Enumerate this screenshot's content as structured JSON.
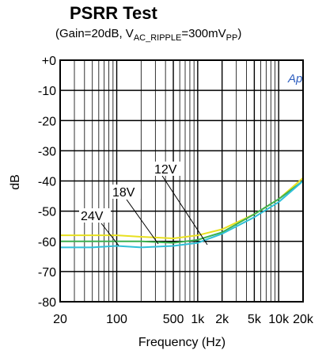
{
  "chart_data": {
    "type": "line",
    "title": "PSRR Test",
    "subtitle": [
      "(Gain=20dB, V",
      "AC_RIPPLE",
      "=300mV",
      "PP",
      ")"
    ],
    "logo": "Ap",
    "x_label": "Frequency (Hz)",
    "y_label": "dB",
    "log_x": true,
    "grid": true,
    "x": [
      20,
      50,
      100,
      200,
      500,
      1000,
      2000,
      5000,
      10000,
      20000
    ],
    "series": [
      {
        "name": "24V",
        "color": "#e8e020",
        "values": [
          -58,
          -58,
          -58,
          -58.5,
          -59,
          -58,
          -56,
          -51,
          -46,
          -39
        ]
      },
      {
        "name": "18V",
        "color": "#3cb050",
        "values": [
          -60,
          -60,
          -60,
          -60,
          -60.5,
          -59.5,
          -57,
          -51,
          -46,
          -40
        ]
      },
      {
        "name": "12V",
        "color": "#30c0d8",
        "values": [
          -62,
          -62,
          -61.5,
          -62,
          -61.5,
          -60.5,
          -57.5,
          -52,
          -47,
          -40
        ]
      }
    ],
    "xlim": [
      20,
      20000
    ],
    "ylim": [
      -80,
      0
    ],
    "xticks": [
      20,
      100,
      500,
      {
        "value": 1000,
        "label": "1k"
      },
      {
        "value": 2000,
        "label": "2k"
      },
      {
        "value": 5000,
        "label": "5k"
      },
      {
        "value": 10000,
        "label": "10k"
      },
      {
        "value": 20000,
        "label": "20k"
      }
    ],
    "xgrid_minor": [
      30,
      40,
      50,
      60,
      70,
      80,
      90,
      200,
      300,
      400,
      600,
      700,
      800,
      900,
      3000,
      4000,
      6000,
      7000,
      8000,
      9000
    ],
    "yticks": [
      {
        "value": 0,
        "label": "+0"
      },
      -10,
      -20,
      -30,
      -40,
      -50,
      -60,
      -70,
      -80
    ]
  }
}
